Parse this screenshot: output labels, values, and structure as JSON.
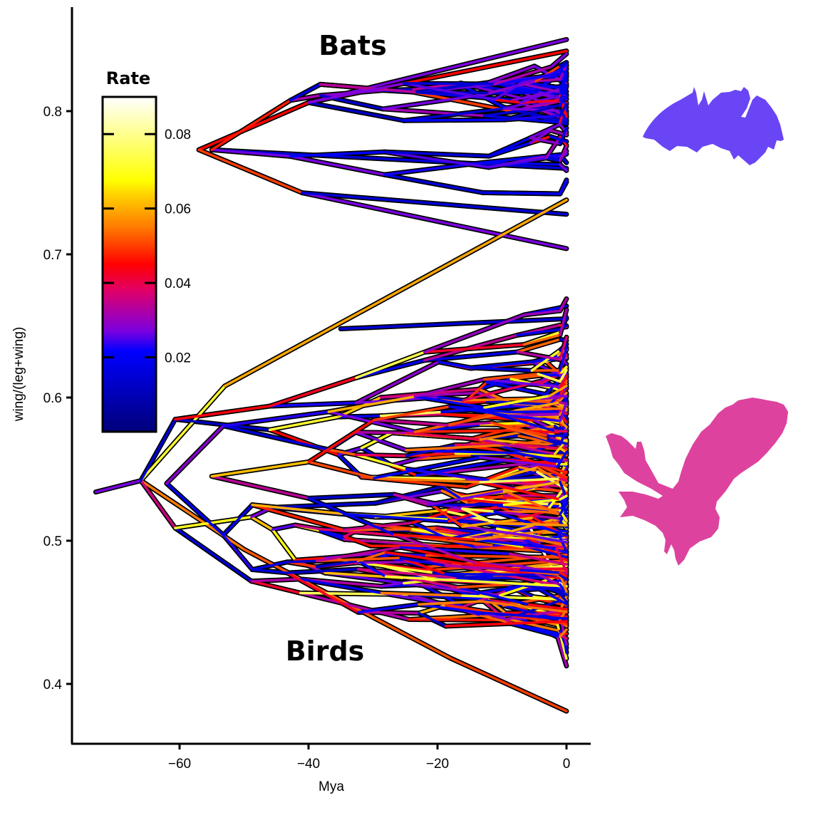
{
  "chart_data": {
    "type": "line",
    "subtype": "phylogenetic traitgram (phenogram) colored by evolutionary rate",
    "title": "",
    "xlabel": "Mya",
    "ylabel": "wing/(leg+wing)",
    "xlim": [
      -76,
      4
    ],
    "ylim": [
      0.36,
      0.865
    ],
    "x_ticks": [
      -60,
      -40,
      -20,
      0
    ],
    "x_tick_labels": [
      "−60",
      "−40",
      "−20",
      "0"
    ],
    "y_ticks": [
      0.4,
      0.5,
      0.6,
      0.7,
      0.8
    ],
    "y_tick_labels": [
      "0.4",
      "0.5",
      "0.6",
      "0.7",
      "0.8"
    ],
    "grid": false,
    "annotations": [
      {
        "text": "Bats",
        "x": -33,
        "y": 0.845
      },
      {
        "text": "Birds",
        "x": -37,
        "y": 0.423
      }
    ],
    "legend": {
      "title": "Rate",
      "type": "colorbar",
      "position": "inside-top-left",
      "ticks": [
        0.02,
        0.04,
        0.06,
        0.08
      ],
      "tick_labels": [
        "0.02",
        "0.04",
        "0.06",
        "0.08"
      ],
      "range": [
        0,
        0.09
      ],
      "colormap": [
        {
          "value": 0.0,
          "color": "#00007a"
        },
        {
          "value": 0.022,
          "color": "#0000ff"
        },
        {
          "value": 0.028,
          "color": "#7a00e0"
        },
        {
          "value": 0.038,
          "color": "#e0006a"
        },
        {
          "value": 0.045,
          "color": "#ff0000"
        },
        {
          "value": 0.055,
          "color": "#ff7a00"
        },
        {
          "value": 0.065,
          "color": "#ffd400"
        },
        {
          "value": 0.068,
          "color": "#ffff00"
        },
        {
          "value": 0.09,
          "color": "#ffffff"
        }
      ]
    },
    "series": [
      {
        "name": "Bats",
        "root": {
          "x": -57,
          "y": 0.773
        },
        "tip_range": [
          0.704,
          0.85
        ],
        "dominant_rate": "low (blue/purple, ~0.015-0.03)",
        "sample_branches": [
          {
            "from": [
              -57,
              0.773
            ],
            "to": [
              -40,
              0.806
            ],
            "rate": 0.045
          },
          {
            "from": [
              -40,
              0.806
            ],
            "to": [
              0,
              0.85
            ],
            "rate": 0.028
          },
          {
            "from": [
              -40,
              0.806
            ],
            "to": [
              0,
              0.842
            ],
            "rate": 0.045
          },
          {
            "from": [
              -57,
              0.773
            ],
            "to": [
              -41,
              0.743
            ],
            "rate": 0.05
          },
          {
            "from": [
              -41,
              0.743
            ],
            "to": [
              0,
              0.704
            ],
            "rate": 0.028
          },
          {
            "from": [
              -41,
              0.743
            ],
            "to": [
              0,
              0.728
            ],
            "rate": 0.015
          },
          {
            "from": [
              -55,
              0.773
            ],
            "to": [
              0,
              0.76
            ],
            "rate": 0.015
          }
        ]
      },
      {
        "name": "Birds",
        "root": {
          "x": -73,
          "y": 0.534
        },
        "tip_range": [
          0.381,
          0.738
        ],
        "dominant_rate": "mixed (blue through yellow, ~0.015-0.08)",
        "sample_branches": [
          {
            "from": [
              -73,
              0.534
            ],
            "to": [
              -66,
              0.542
            ],
            "rate": 0.028
          },
          {
            "from": [
              -66,
              0.542
            ],
            "to": [
              -53,
              0.608
            ],
            "rate": 0.072
          },
          {
            "from": [
              -53,
              0.608
            ],
            "to": [
              0,
              0.738
            ],
            "rate": 0.06
          },
          {
            "from": [
              -66,
              0.542
            ],
            "to": [
              -50,
              0.494
            ],
            "rate": 0.055
          },
          {
            "from": [
              -50,
              0.494
            ],
            "to": [
              -18,
              0.418
            ],
            "rate": 0.052
          },
          {
            "from": [
              -18,
              0.418
            ],
            "to": [
              0,
              0.381
            ],
            "rate": 0.05
          },
          {
            "from": [
              -6,
              0.512
            ],
            "to": [
              0,
              0.463
            ],
            "rate": 0.09
          },
          {
            "from": [
              -35,
              0.648
            ],
            "to": [
              0,
              0.655
            ],
            "rate": 0.015
          }
        ]
      }
    ]
  },
  "silhouettes": {
    "bat": {
      "label": "bat-silhouette",
      "color": "#6a45f5"
    },
    "bird": {
      "label": "owl-silhouette",
      "color": "#dd439e"
    }
  }
}
